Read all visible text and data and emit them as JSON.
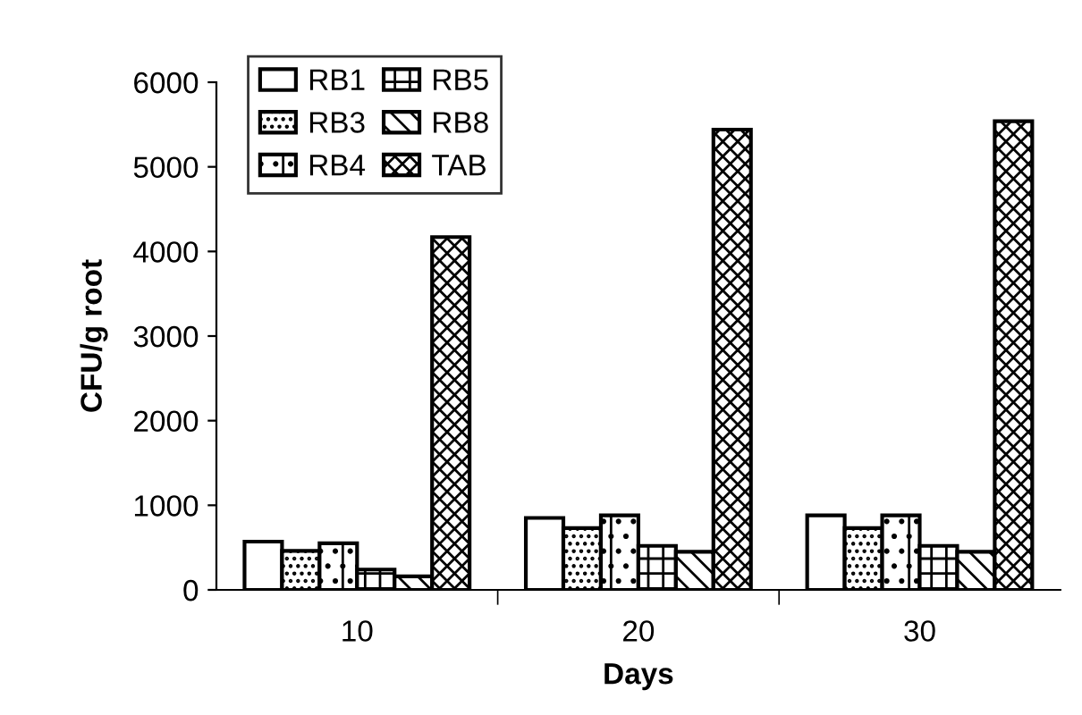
{
  "chart_data": {
    "type": "bar",
    "xlabel": "Days",
    "ylabel": "CFU/g root",
    "categories": [
      "10",
      "20",
      "30"
    ],
    "series": [
      {
        "name": "RB1",
        "color": "#ffffff",
        "values": [
          570,
          850,
          880
        ]
      },
      {
        "name": "RB3",
        "color": "#000000",
        "values": [
          460,
          730,
          730
        ]
      },
      {
        "name": "RB4",
        "color": "#000000",
        "values": [
          550,
          880,
          880
        ]
      },
      {
        "name": "RB5",
        "color": "#000000",
        "values": [
          240,
          520,
          520
        ]
      },
      {
        "name": "RB8",
        "color": "#000000",
        "values": [
          160,
          450,
          450
        ]
      },
      {
        "name": "TAB",
        "color": "#000000",
        "values": [
          4170,
          5440,
          5540
        ]
      }
    ],
    "ylim": [
      0,
      6000
    ],
    "yticks": [
      0,
      1000,
      2000,
      3000,
      4000,
      5000,
      6000
    ],
    "grid": false,
    "legend": "top left"
  }
}
